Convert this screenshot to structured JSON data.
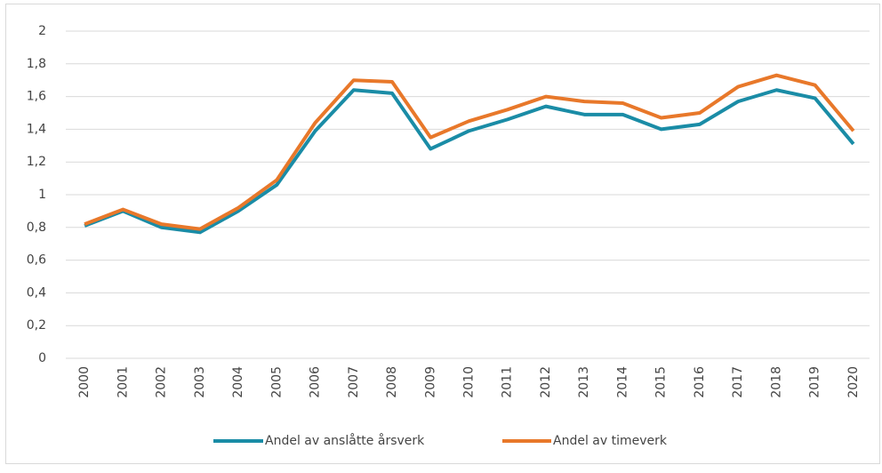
{
  "chart_data": {
    "type": "line",
    "categories": [
      "2000",
      "2001",
      "2002",
      "2003",
      "2004",
      "2005",
      "2006",
      "2007",
      "2008",
      "2009",
      "2010",
      "2011",
      "2012",
      "2013",
      "2014",
      "2015",
      "2016",
      "2017",
      "2018",
      "2019",
      "2020"
    ],
    "series": [
      {
        "name": "Andel av anslåtte årsverk",
        "color": "#1a8ca6",
        "values": [
          0.81,
          0.9,
          0.8,
          0.77,
          0.9,
          1.06,
          1.39,
          1.64,
          1.62,
          1.28,
          1.39,
          1.46,
          1.54,
          1.49,
          1.49,
          1.4,
          1.43,
          1.57,
          1.64,
          1.59,
          1.31
        ]
      },
      {
        "name": "Andel av timeverk",
        "color": "#e8782a",
        "values": [
          0.82,
          0.91,
          0.82,
          0.79,
          0.92,
          1.09,
          1.44,
          1.7,
          1.69,
          1.35,
          1.45,
          1.52,
          1.6,
          1.57,
          1.56,
          1.47,
          1.5,
          1.66,
          1.73,
          1.67,
          1.39
        ]
      }
    ],
    "ylim": [
      0,
      2
    ],
    "yticks": [
      0,
      {
        "value": 0.2,
        "label": "0,2"
      },
      {
        "value": 0.4,
        "label": "0,4"
      },
      {
        "value": 0.6,
        "label": "0,6"
      },
      {
        "value": 0.8,
        "label": "0,8"
      },
      1,
      {
        "value": 1.2,
        "label": "1,2"
      },
      {
        "value": 1.4,
        "label": "1,4"
      },
      {
        "value": 1.6,
        "label": "1,6"
      },
      {
        "value": 1.8,
        "label": "1,8"
      },
      2
    ],
    "grid": true,
    "legend": "bottom"
  }
}
